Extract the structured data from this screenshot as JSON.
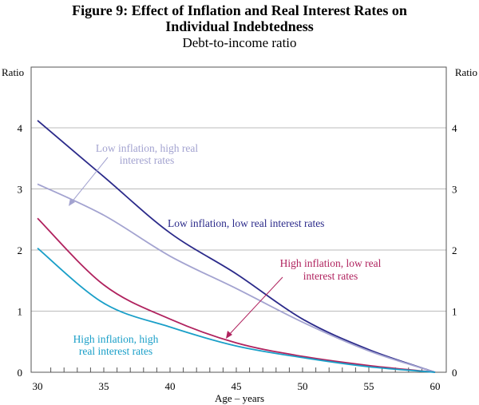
{
  "chart_data": {
    "type": "line",
    "title": "Figure 9: Effect of Inflation and Real Interest Rates on",
    "title_line2": "Individual Indebtedness",
    "subtitle": "Debt-to-income ratio",
    "xlabel": "Age – years",
    "ylabel_left": "Ratio",
    "ylabel_right": "Ratio",
    "xlim": [
      30,
      60
    ],
    "ylim": [
      0,
      4.5
    ],
    "xticks": [
      30,
      35,
      40,
      45,
      50,
      55,
      60
    ],
    "yticks": [
      0,
      1,
      2,
      3,
      4
    ],
    "grid": "horizontal",
    "x": [
      30,
      35,
      40,
      45,
      50,
      55,
      60
    ],
    "series": [
      {
        "name": "Low inflation, low real interest rates",
        "color": "#2b2a8a",
        "values": [
          4.12,
          3.2,
          2.28,
          1.61,
          0.87,
          0.37,
          0
        ]
      },
      {
        "name": "Low inflation, high real interest rates",
        "color": "#a3a3d0",
        "values": [
          3.08,
          2.57,
          1.9,
          1.37,
          0.82,
          0.35,
          0
        ]
      },
      {
        "name": "High inflation, low real interest rates",
        "color": "#b0225e",
        "values": [
          2.52,
          1.43,
          0.87,
          0.48,
          0.26,
          0.11,
          0
        ]
      },
      {
        "name": "High inflation, high real interest rates",
        "color": "#1a9fc8",
        "values": [
          2.03,
          1.13,
          0.74,
          0.43,
          0.24,
          0.09,
          0
        ]
      }
    ],
    "annotations": {
      "low_low": [
        "Low inflation, low real interest rates"
      ],
      "low_high": [
        "Low inflation, high real",
        "interest rates"
      ],
      "high_low": [
        "High inflation, low real",
        "interest rates"
      ],
      "high_high": [
        "High inflation, high",
        "real interest rates"
      ]
    }
  }
}
